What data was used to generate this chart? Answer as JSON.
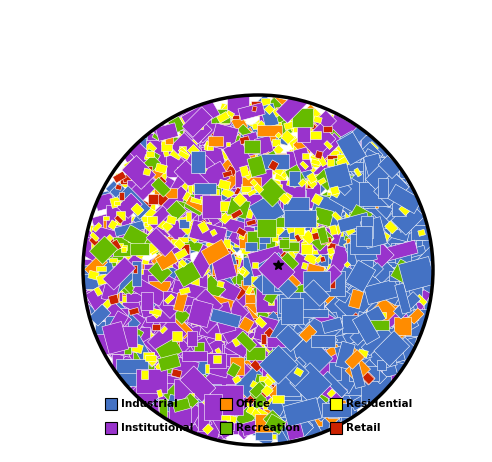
{
  "legend_items": [
    {
      "label": "Industrial",
      "color": "#4472C4"
    },
    {
      "label": "Office",
      "color": "#FF8C00"
    },
    {
      "label": "Residential",
      "color": "#FFFF00"
    },
    {
      "label": "Institutional",
      "color": "#9933CC"
    },
    {
      "label": "Recreation",
      "color": "#66BB00"
    },
    {
      "label": "Retail",
      "color": "#CC2200"
    }
  ],
  "background_color": "#FFFFFF",
  "circle_edge_color": "#000000",
  "circle_linewidth": 2.5,
  "seed": 42
}
